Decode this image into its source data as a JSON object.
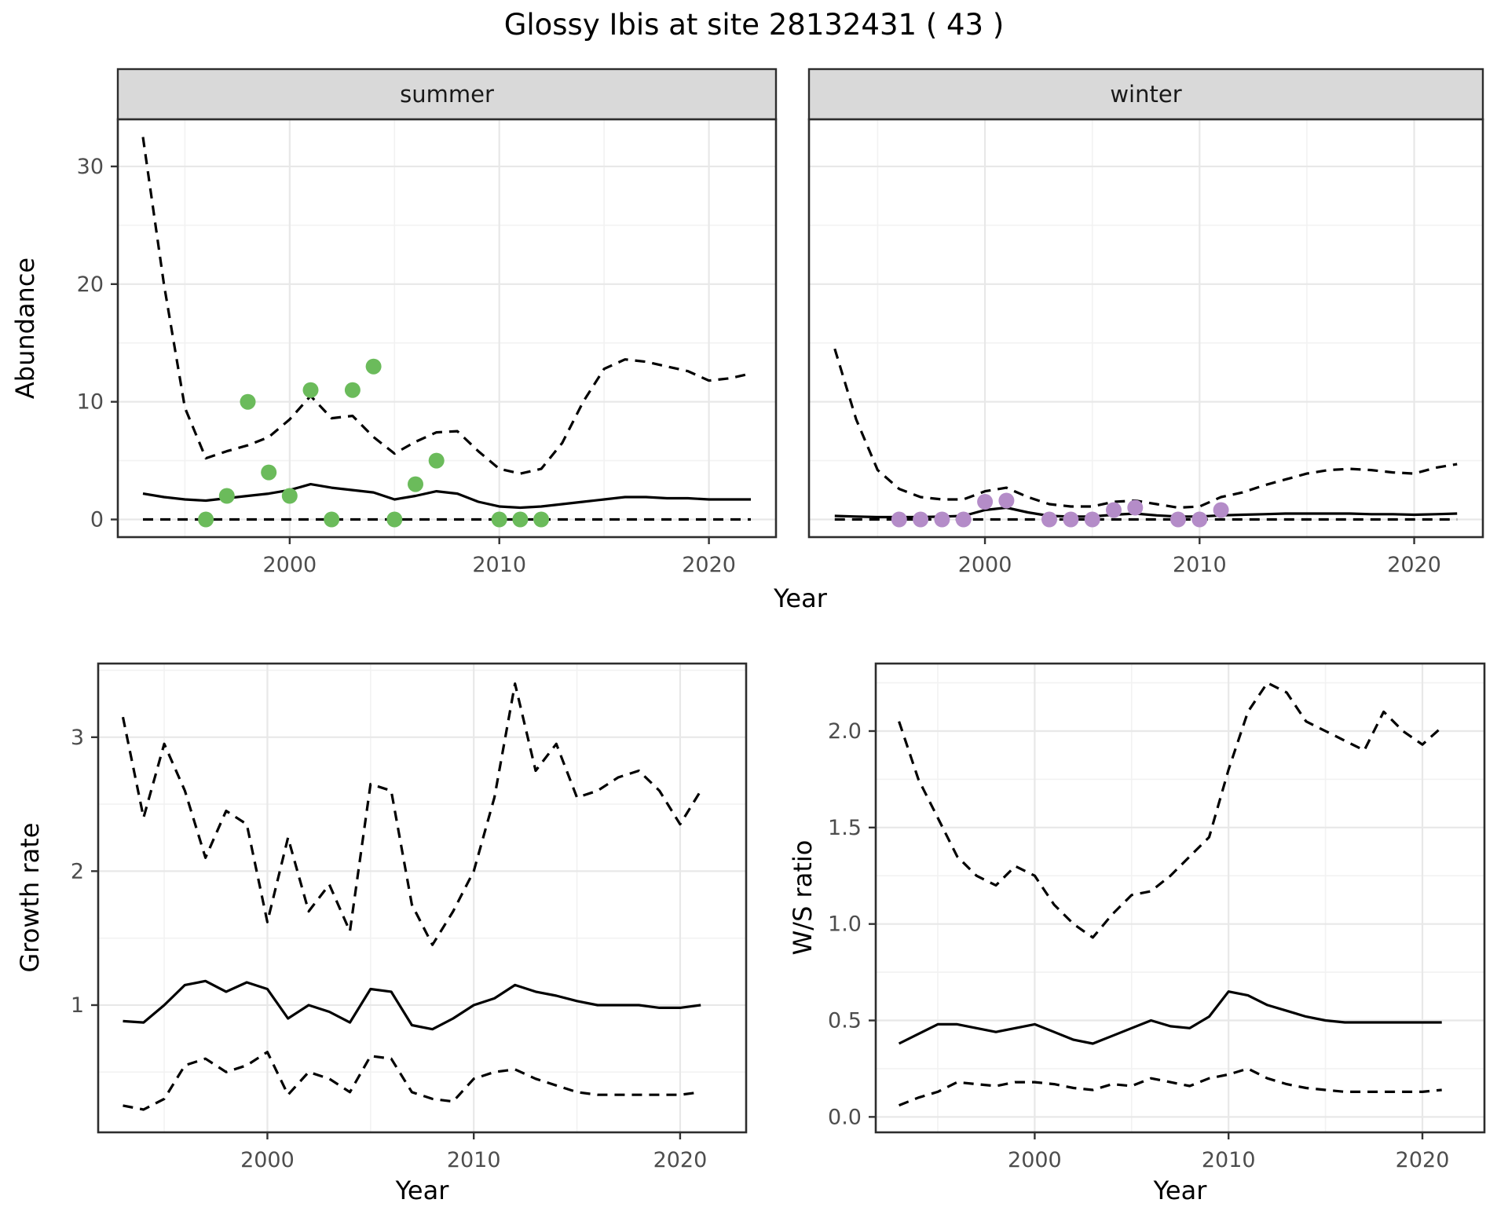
{
  "theme": {
    "background": "#ffffff",
    "strip_bg": "#d9d9d9",
    "panel_border": "#2d2d2d",
    "grid_major": "#e8e8e8",
    "grid_minor": "#f2f2f2",
    "line_color": "#000000",
    "tick_text": "#4d4d4d",
    "summer_point_color": "#6bbb5b",
    "winter_point_color": "#b48cc8"
  },
  "chart_data": [
    {
      "id": "abundance-by-season",
      "type": "line",
      "title": "Glossy Ibis at site 28132431 ( 43 )",
      "xlabel": "Year",
      "ylabel": "Abundance",
      "legend": "none",
      "grid": true,
      "xlim": [
        1991.8,
        2023.2
      ],
      "ylim": [
        -1.5,
        34
      ],
      "xticks": [
        2000,
        2010,
        2020
      ],
      "xtick_labels": [
        "2000",
        "2010",
        "2020"
      ],
      "yticks": [
        0,
        10,
        20,
        30
      ],
      "ytick_labels": [
        "0",
        "10",
        "20",
        "30"
      ],
      "x": [
        1993,
        1994,
        1995,
        1996,
        1997,
        1998,
        1999,
        2000,
        2001,
        2002,
        2003,
        2004,
        2005,
        2006,
        2007,
        2008,
        2009,
        2010,
        2011,
        2012,
        2013,
        2014,
        2015,
        2016,
        2017,
        2018,
        2019,
        2020,
        2021,
        2022
      ],
      "facets": [
        {
          "name": "summer",
          "point_color": "#6bbb5b",
          "series": [
            {
              "name": "upper_ci",
              "style": "dashed",
              "values": [
                32.5,
                20,
                9.5,
                5.2,
                5.8,
                6.3,
                7.0,
                8.5,
                10.5,
                8.6,
                8.8,
                7.0,
                5.6,
                6.6,
                7.4,
                7.5,
                5.8,
                4.3,
                3.9,
                4.3,
                6.5,
                10.0,
                12.8,
                13.6,
                13.4,
                13.0,
                12.6,
                11.8,
                12.0,
                12.4
              ]
            },
            {
              "name": "mean",
              "style": "solid",
              "values": [
                2.2,
                1.9,
                1.7,
                1.6,
                1.8,
                2.0,
                2.2,
                2.5,
                3.0,
                2.7,
                2.5,
                2.3,
                1.7,
                2.0,
                2.4,
                2.2,
                1.5,
                1.1,
                1.0,
                1.1,
                1.3,
                1.5,
                1.7,
                1.9,
                1.9,
                1.8,
                1.8,
                1.7,
                1.7,
                1.7
              ]
            },
            {
              "name": "lower_ci",
              "style": "dashed",
              "values": [
                0,
                0,
                0,
                0,
                0,
                0,
                0,
                0,
                0,
                0,
                0,
                0,
                0,
                0,
                0,
                0,
                0,
                0,
                0,
                0,
                0,
                0,
                0,
                0,
                0,
                0,
                0,
                0,
                0,
                0
              ]
            }
          ],
          "points": {
            "x": [
              1996,
              1997,
              1998,
              1999,
              2000,
              2001,
              2002,
              2003,
              2004,
              2005,
              2006,
              2007,
              2010,
              2011,
              2012
            ],
            "y": [
              0,
              2,
              10,
              4,
              2,
              11,
              0,
              11,
              13,
              0,
              3,
              5,
              0,
              0,
              0
            ]
          }
        },
        {
          "name": "winter",
          "point_color": "#b48cc8",
          "series": [
            {
              "name": "upper_ci",
              "style": "dashed",
              "values": [
                14.5,
                8.5,
                4.2,
                2.6,
                1.9,
                1.7,
                1.7,
                2.4,
                2.7,
                1.9,
                1.3,
                1.1,
                1.1,
                1.5,
                1.6,
                1.3,
                1.0,
                1.1,
                1.9,
                2.3,
                2.9,
                3.4,
                3.9,
                4.2,
                4.3,
                4.2,
                4.0,
                3.9,
                4.4,
                4.7
              ]
            },
            {
              "name": "mean",
              "style": "solid",
              "values": [
                0.3,
                0.25,
                0.2,
                0.2,
                0.2,
                0.25,
                0.3,
                0.8,
                1.0,
                0.6,
                0.3,
                0.25,
                0.25,
                0.4,
                0.5,
                0.35,
                0.25,
                0.25,
                0.35,
                0.4,
                0.45,
                0.5,
                0.5,
                0.5,
                0.5,
                0.45,
                0.45,
                0.4,
                0.45,
                0.5
              ]
            },
            {
              "name": "lower_ci",
              "style": "dashed",
              "values": [
                0,
                0,
                0,
                0,
                0,
                0,
                0,
                0,
                0,
                0,
                0,
                0,
                0,
                0,
                0,
                0,
                0,
                0,
                0,
                0,
                0,
                0,
                0,
                0,
                0,
                0,
                0,
                0,
                0,
                0
              ]
            }
          ],
          "points": {
            "x": [
              1996,
              1997,
              1998,
              1999,
              2000,
              2001,
              2003,
              2004,
              2005,
              2006,
              2007,
              2009,
              2010,
              2011
            ],
            "y": [
              0,
              0,
              0,
              0,
              1.5,
              1.6,
              0,
              0,
              0,
              0.8,
              1.0,
              0,
              0,
              0.8
            ]
          }
        }
      ]
    },
    {
      "id": "growth-rate",
      "type": "line",
      "title": "",
      "xlabel": "Year",
      "ylabel": "Growth rate",
      "legend": "none",
      "grid": true,
      "xlim": [
        1991.8,
        2023.2
      ],
      "ylim": [
        0.05,
        3.55
      ],
      "xticks": [
        2000,
        2010,
        2020
      ],
      "xtick_labels": [
        "2000",
        "2010",
        "2020"
      ],
      "yticks": [
        1,
        2,
        3
      ],
      "ytick_labels": [
        "1",
        "2",
        "3"
      ],
      "x": [
        1993,
        1994,
        1995,
        1996,
        1997,
        1998,
        1999,
        2000,
        2001,
        2002,
        2003,
        2004,
        2005,
        2006,
        2007,
        2008,
        2009,
        2010,
        2011,
        2012,
        2013,
        2014,
        2015,
        2016,
        2017,
        2018,
        2019,
        2020,
        2021
      ],
      "series": [
        {
          "name": "upper_ci",
          "style": "dashed",
          "values": [
            3.15,
            2.4,
            2.95,
            2.6,
            2.1,
            2.45,
            2.35,
            1.62,
            2.25,
            1.7,
            1.9,
            1.55,
            2.65,
            2.6,
            1.75,
            1.45,
            1.7,
            2.0,
            2.55,
            3.4,
            2.75,
            2.95,
            2.55,
            2.6,
            2.7,
            2.75,
            2.6,
            2.35,
            2.6
          ]
        },
        {
          "name": "mean",
          "style": "solid",
          "values": [
            0.88,
            0.87,
            1.0,
            1.15,
            1.18,
            1.1,
            1.17,
            1.12,
            0.9,
            1.0,
            0.95,
            0.87,
            1.12,
            1.1,
            0.85,
            0.82,
            0.9,
            1.0,
            1.05,
            1.15,
            1.1,
            1.07,
            1.03,
            1.0,
            1.0,
            1.0,
            0.98,
            0.98,
            1.0
          ]
        },
        {
          "name": "lower_ci",
          "style": "dashed",
          "values": [
            0.25,
            0.22,
            0.3,
            0.55,
            0.6,
            0.5,
            0.55,
            0.65,
            0.33,
            0.5,
            0.45,
            0.35,
            0.62,
            0.6,
            0.35,
            0.3,
            0.28,
            0.45,
            0.5,
            0.52,
            0.45,
            0.4,
            0.35,
            0.33,
            0.33,
            0.33,
            0.33,
            0.33,
            0.35
          ]
        }
      ]
    },
    {
      "id": "ws-ratio",
      "type": "line",
      "title": "",
      "xlabel": "Year",
      "ylabel": "W/S ratio",
      "legend": "none",
      "grid": true,
      "xlim": [
        1991.8,
        2023.2
      ],
      "ylim": [
        -0.08,
        2.35
      ],
      "xticks": [
        2000,
        2010,
        2020
      ],
      "xtick_labels": [
        "2000",
        "2010",
        "2020"
      ],
      "yticks": [
        0,
        0.5,
        1,
        1.5,
        2
      ],
      "ytick_labels": [
        "0.0",
        "0.5",
        "1.0",
        "1.5",
        "2.0"
      ],
      "x": [
        1993,
        1994,
        1995,
        1996,
        1997,
        1998,
        1999,
        2000,
        2001,
        2002,
        2003,
        2004,
        2005,
        2006,
        2007,
        2008,
        2009,
        2010,
        2011,
        2012,
        2013,
        2014,
        2015,
        2016,
        2017,
        2018,
        2019,
        2020,
        2021
      ],
      "series": [
        {
          "name": "upper_ci",
          "style": "dashed",
          "values": [
            2.05,
            1.75,
            1.55,
            1.35,
            1.25,
            1.2,
            1.3,
            1.25,
            1.1,
            1.0,
            0.93,
            1.05,
            1.15,
            1.17,
            1.25,
            1.35,
            1.45,
            1.8,
            2.1,
            2.25,
            2.2,
            2.05,
            2.0,
            1.95,
            1.9,
            2.1,
            2.0,
            1.93,
            2.02
          ]
        },
        {
          "name": "mean",
          "style": "solid",
          "values": [
            0.38,
            0.43,
            0.48,
            0.48,
            0.46,
            0.44,
            0.46,
            0.48,
            0.44,
            0.4,
            0.38,
            0.42,
            0.46,
            0.5,
            0.47,
            0.46,
            0.52,
            0.65,
            0.63,
            0.58,
            0.55,
            0.52,
            0.5,
            0.49,
            0.49,
            0.49,
            0.49,
            0.49,
            0.49
          ]
        },
        {
          "name": "lower_ci",
          "style": "dashed",
          "values": [
            0.06,
            0.1,
            0.13,
            0.18,
            0.17,
            0.16,
            0.18,
            0.18,
            0.17,
            0.15,
            0.14,
            0.17,
            0.16,
            0.2,
            0.18,
            0.16,
            0.2,
            0.22,
            0.25,
            0.2,
            0.17,
            0.15,
            0.14,
            0.13,
            0.13,
            0.13,
            0.13,
            0.13,
            0.14
          ]
        }
      ]
    }
  ]
}
